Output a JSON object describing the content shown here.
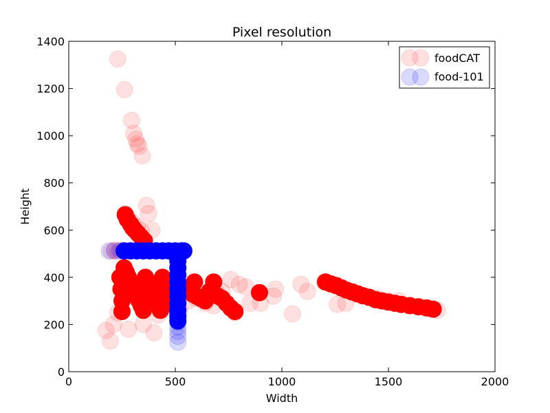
{
  "chart_data": {
    "type": "scatter",
    "title": "Pixel resolution",
    "xlabel": "Width",
    "ylabel": "Height",
    "xlim": [
      0,
      2000
    ],
    "ylim": [
      0,
      1400
    ],
    "xticks": [
      0,
      500,
      1000,
      1500,
      2000
    ],
    "yticks": [
      0,
      200,
      400,
      600,
      800,
      1000,
      1200,
      1400
    ],
    "grid": false,
    "legend_position": "top-right",
    "series": [
      {
        "name": "foodCAT",
        "color": "#ff0000",
        "alpha": 0.12,
        "points": [
          [
            230,
            1325
          ],
          [
            262,
            1195
          ],
          [
            295,
            1065
          ],
          [
            305,
            1010
          ],
          [
            315,
            985
          ],
          [
            322,
            965
          ],
          [
            330,
            955
          ],
          [
            345,
            915
          ],
          [
            265,
            670
          ],
          [
            280,
            650
          ],
          [
            300,
            630
          ],
          [
            320,
            615
          ],
          [
            340,
            600
          ],
          [
            365,
            705
          ],
          [
            375,
            670
          ],
          [
            390,
            600
          ],
          [
            200,
            510
          ],
          [
            215,
            515
          ],
          [
            230,
            510
          ],
          [
            250,
            515
          ],
          [
            175,
            175
          ],
          [
            195,
            130
          ],
          [
            210,
            200
          ],
          [
            230,
            250
          ],
          [
            280,
            180
          ],
          [
            350,
            200
          ],
          [
            400,
            165
          ],
          [
            420,
            240
          ],
          [
            450,
            270
          ],
          [
            480,
            300
          ],
          [
            520,
            260
          ],
          [
            560,
            300
          ],
          [
            600,
            310
          ],
          [
            640,
            290
          ],
          [
            680,
            280
          ],
          [
            700,
            330
          ],
          [
            720,
            340
          ],
          [
            760,
            390
          ],
          [
            780,
            250
          ],
          [
            800,
            370
          ],
          [
            830,
            360
          ],
          [
            850,
            290
          ],
          [
            900,
            290
          ],
          [
            960,
            320
          ],
          [
            970,
            350
          ],
          [
            1050,
            245
          ],
          [
            1090,
            370
          ],
          [
            1120,
            340
          ],
          [
            1200,
            380
          ],
          [
            1260,
            285
          ],
          [
            1300,
            290
          ],
          [
            1350,
            330
          ],
          [
            1400,
            320
          ],
          [
            1450,
            310
          ],
          [
            1500,
            300
          ],
          [
            1550,
            300
          ],
          [
            1600,
            280
          ],
          [
            1650,
            275
          ],
          [
            1700,
            265
          ],
          [
            1730,
            260
          ]
        ]
      },
      {
        "name": "foodCAT",
        "color": "#ff0000",
        "alpha": 1,
        "points": [
          [
            265,
            665
          ],
          [
            275,
            645
          ],
          [
            290,
            625
          ],
          [
            300,
            610
          ],
          [
            310,
            600
          ],
          [
            325,
            585
          ],
          [
            340,
            570
          ],
          [
            355,
            555
          ],
          [
            240,
            400
          ],
          [
            245,
            350
          ],
          [
            250,
            300
          ],
          [
            250,
            255
          ],
          [
            260,
            440
          ],
          [
            270,
            420
          ],
          [
            280,
            400
          ],
          [
            290,
            380
          ],
          [
            300,
            360
          ],
          [
            310,
            340
          ],
          [
            320,
            320
          ],
          [
            330,
            300
          ],
          [
            340,
            280
          ],
          [
            350,
            260
          ],
          [
            360,
            400
          ],
          [
            370,
            380
          ],
          [
            380,
            360
          ],
          [
            390,
            340
          ],
          [
            400,
            320
          ],
          [
            410,
            300
          ],
          [
            420,
            280
          ],
          [
            430,
            260
          ],
          [
            440,
            400
          ],
          [
            450,
            380
          ],
          [
            460,
            360
          ],
          [
            470,
            340
          ],
          [
            480,
            320
          ],
          [
            490,
            300
          ],
          [
            500,
            280
          ],
          [
            510,
            260
          ],
          [
            540,
            350
          ],
          [
            560,
            340
          ],
          [
            580,
            330
          ],
          [
            600,
            320
          ],
          [
            620,
            310
          ],
          [
            640,
            300
          ],
          [
            660,
            340
          ],
          [
            680,
            330
          ],
          [
            700,
            320
          ],
          [
            720,
            310
          ],
          [
            740,
            290
          ],
          [
            760,
            270
          ],
          [
            780,
            255
          ],
          [
            590,
            380
          ],
          [
            680,
            380
          ],
          [
            895,
            335
          ],
          [
            1205,
            380
          ],
          [
            1230,
            372
          ],
          [
            1255,
            365
          ],
          [
            1280,
            355
          ],
          [
            1305,
            345
          ],
          [
            1330,
            338
          ],
          [
            1355,
            330
          ],
          [
            1380,
            322
          ],
          [
            1410,
            315
          ],
          [
            1440,
            305
          ],
          [
            1470,
            300
          ],
          [
            1500,
            295
          ],
          [
            1530,
            290
          ],
          [
            1560,
            285
          ],
          [
            1600,
            280
          ],
          [
            1640,
            275
          ],
          [
            1680,
            270
          ],
          [
            1710,
            265
          ]
        ]
      },
      {
        "name": "food-101",
        "color": "#0000ff",
        "alpha": 0.15,
        "points": [
          [
            190,
            512
          ],
          [
            215,
            512
          ],
          [
            240,
            512
          ],
          [
            512,
            190
          ],
          [
            512,
            170
          ],
          [
            512,
            150
          ],
          [
            512,
            125
          ],
          [
            512,
            210
          ]
        ]
      },
      {
        "name": "food-101",
        "color": "#0000ff",
        "alpha": 1,
        "points": [
          [
            260,
            512
          ],
          [
            290,
            512
          ],
          [
            320,
            512
          ],
          [
            350,
            512
          ],
          [
            380,
            512
          ],
          [
            410,
            512
          ],
          [
            440,
            512
          ],
          [
            470,
            512
          ],
          [
            500,
            512
          ],
          [
            512,
            500
          ],
          [
            512,
            470
          ],
          [
            512,
            440
          ],
          [
            512,
            410
          ],
          [
            512,
            380
          ],
          [
            512,
            350
          ],
          [
            512,
            320
          ],
          [
            512,
            290
          ],
          [
            512,
            260
          ],
          [
            512,
            235
          ],
          [
            512,
            215
          ],
          [
            520,
            505
          ],
          [
            530,
            512
          ],
          [
            540,
            512
          ]
        ]
      }
    ],
    "legend": [
      {
        "label": "foodCAT",
        "color": "#ff0000"
      },
      {
        "label": "food-101",
        "color": "#0000ff"
      }
    ]
  }
}
